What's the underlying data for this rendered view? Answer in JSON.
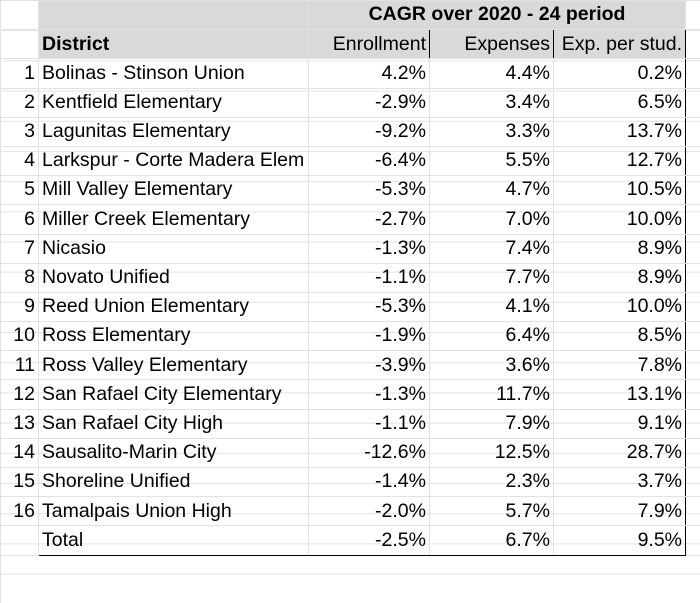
{
  "header": {
    "group_title": "CAGR over 2020 - 24 period",
    "district_label": "District",
    "col_enrollment": "Enrollment",
    "col_expenses": "Expenses",
    "col_exp_per_student": "Exp. per stud."
  },
  "rows": [
    {
      "num": "1",
      "district": "Bolinas - Stinson Union",
      "enrollment": "4.2%",
      "expenses": "4.4%",
      "exp_per_student": "0.2%"
    },
    {
      "num": "2",
      "district": "Kentfield Elementary",
      "enrollment": "-2.9%",
      "expenses": "3.4%",
      "exp_per_student": "6.5%"
    },
    {
      "num": "3",
      "district": "Lagunitas Elementary",
      "enrollment": "-9.2%",
      "expenses": "3.3%",
      "exp_per_student": "13.7%"
    },
    {
      "num": "4",
      "district": "Larkspur - Corte Madera Elem",
      "enrollment": "-6.4%",
      "expenses": "5.5%",
      "exp_per_student": "12.7%"
    },
    {
      "num": "5",
      "district": "Mill Valley Elementary",
      "enrollment": "-5.3%",
      "expenses": "4.7%",
      "exp_per_student": "10.5%"
    },
    {
      "num": "6",
      "district": "Miller Creek Elementary",
      "enrollment": "-2.7%",
      "expenses": "7.0%",
      "exp_per_student": "10.0%"
    },
    {
      "num": "7",
      "district": "Nicasio",
      "enrollment": "-1.3%",
      "expenses": "7.4%",
      "exp_per_student": "8.9%"
    },
    {
      "num": "8",
      "district": "Novato Unified",
      "enrollment": "-1.1%",
      "expenses": "7.7%",
      "exp_per_student": "8.9%"
    },
    {
      "num": "9",
      "district": "Reed Union Elementary",
      "enrollment": "-5.3%",
      "expenses": "4.1%",
      "exp_per_student": "10.0%"
    },
    {
      "num": "10",
      "district": "Ross Elementary",
      "enrollment": "-1.9%",
      "expenses": "6.4%",
      "exp_per_student": "8.5%"
    },
    {
      "num": "11",
      "district": "Ross Valley Elementary",
      "enrollment": "-3.9%",
      "expenses": "3.6%",
      "exp_per_student": "7.8%"
    },
    {
      "num": "12",
      "district": "San Rafael City Elementary",
      "enrollment": "-1.3%",
      "expenses": "11.7%",
      "exp_per_student": "13.1%"
    },
    {
      "num": "13",
      "district": "San Rafael City High",
      "enrollment": "-1.1%",
      "expenses": "7.9%",
      "exp_per_student": "9.1%"
    },
    {
      "num": "14",
      "district": "Sausalito-Marin City",
      "enrollment": "-12.6%",
      "expenses": "12.5%",
      "exp_per_student": "28.7%"
    },
    {
      "num": "15",
      "district": "Shoreline Unified",
      "enrollment": "-1.4%",
      "expenses": "2.3%",
      "exp_per_student": "3.7%"
    },
    {
      "num": "16",
      "district": "Tamalpais Union High",
      "enrollment": "-2.0%",
      "expenses": "5.7%",
      "exp_per_student": "7.9%"
    }
  ],
  "total": {
    "label": "Total",
    "enrollment": "-2.5%",
    "expenses": "6.7%",
    "exp_per_student": "9.5%"
  }
}
